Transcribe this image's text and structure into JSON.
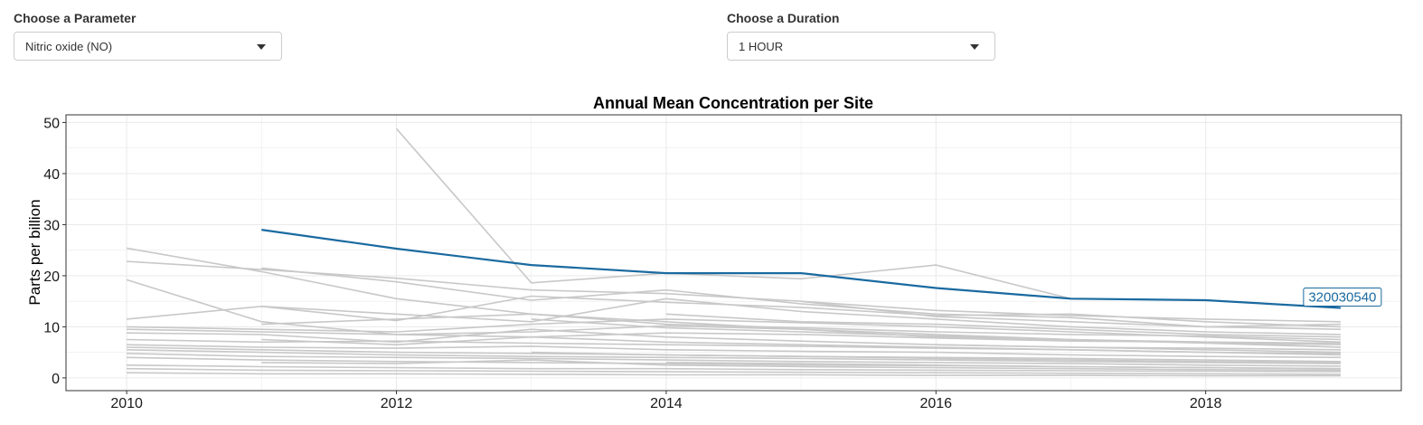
{
  "controls": {
    "parameter": {
      "label": "Choose a Parameter",
      "value": "Nitric oxide (NO)"
    },
    "duration": {
      "label": "Choose a Duration",
      "value": "1 HOUR"
    }
  },
  "icons": {
    "dropdown": "caret-down-icon"
  },
  "colors": {
    "highlight": "#1a6aa0",
    "background_lines": "#c8c8c8",
    "grid": "#ebebeb"
  },
  "chart_data": {
    "type": "line",
    "title": "Annual Mean Concentration per Site",
    "xlabel": "",
    "ylabel": "Parts per billion",
    "xlim": [
      2009.55,
      2019.45
    ],
    "ylim": [
      -2.5,
      51.5
    ],
    "xticks": [
      2010,
      2012,
      2014,
      2016,
      2018
    ],
    "yticks": [
      0,
      10,
      20,
      30,
      40,
      50
    ],
    "grid": true,
    "highlight": {
      "name": "320030540",
      "x": [
        2011,
        2012,
        2013,
        2014,
        2015,
        2016,
        2017,
        2018,
        2019
      ],
      "y": [
        29,
        25.3,
        22.1,
        20.5,
        20.5,
        17.6,
        15.5,
        15.2,
        13.7
      ]
    },
    "series": [
      {
        "x": [
          2012,
          2013,
          2014,
          2015,
          2016,
          2017
        ],
        "y": [
          48.8,
          18.6,
          20.5,
          19.4,
          22.1,
          15.5
        ]
      },
      {
        "x": [
          2010,
          2011,
          2012,
          2013,
          2014,
          2015,
          2016,
          2017,
          2018,
          2019
        ],
        "y": [
          25.4,
          20.8,
          15.5,
          12.5,
          10.5,
          9.8,
          9.0,
          8.5,
          8.2,
          7.5
        ]
      },
      {
        "x": [
          2010,
          2011,
          2012,
          2013,
          2014,
          2015,
          2016,
          2017,
          2018,
          2019
        ],
        "y": [
          22.8,
          21.2,
          19.5,
          17.2,
          16.5,
          15.0,
          13.2,
          12.2,
          11.5,
          11.0
        ]
      },
      {
        "x": [
          2010,
          2011,
          2012,
          2013,
          2014,
          2015,
          2016,
          2017,
          2018,
          2019
        ],
        "y": [
          19.2,
          11.0,
          8.5,
          9.0,
          10.2,
          9.5,
          8.0,
          7.4,
          7.0,
          6.8
        ]
      },
      {
        "x": [
          2010,
          2011,
          2012,
          2013,
          2014,
          2015,
          2016,
          2017,
          2018,
          2019
        ],
        "y": [
          11.5,
          14.0,
          11.2,
          16.0,
          14.8,
          13.8,
          12.2,
          12.5,
          11.0,
          10.0
        ]
      },
      {
        "x": [
          2011,
          2012,
          2013,
          2014,
          2015,
          2016,
          2017,
          2018,
          2019
        ],
        "y": [
          21.5,
          18.8,
          15.2,
          17.2,
          14.5,
          12.5,
          11.8,
          10.0,
          10.5
        ]
      },
      {
        "x": [
          2010,
          2011,
          2012,
          2013,
          2014,
          2015,
          2016,
          2017,
          2018,
          2019
        ],
        "y": [
          10.0,
          9.5,
          9.0,
          10.5,
          11.5,
          10.8,
          10.0,
          9.0,
          8.0,
          7.0
        ]
      },
      {
        "x": [
          2010,
          2011,
          2012,
          2013,
          2014,
          2015,
          2016,
          2017,
          2018,
          2019
        ],
        "y": [
          9.5,
          9.0,
          8.5,
          8.0,
          8.8,
          8.5,
          7.8,
          7.2,
          7.0,
          6.5
        ]
      },
      {
        "x": [
          2010,
          2011,
          2012,
          2013,
          2014,
          2015,
          2016,
          2017,
          2018,
          2019
        ],
        "y": [
          8.8,
          8.5,
          7.0,
          9.5,
          8.0,
          7.2,
          6.5,
          6.0,
          5.8,
          5.5
        ]
      },
      {
        "x": [
          2010,
          2011,
          2012,
          2013,
          2014,
          2015,
          2016,
          2017,
          2018,
          2019
        ],
        "y": [
          7.5,
          7.0,
          7.2,
          6.8,
          6.5,
          6.2,
          5.8,
          5.5,
          5.0,
          4.8
        ]
      },
      {
        "x": [
          2010,
          2011,
          2012,
          2013,
          2014,
          2015,
          2016,
          2017,
          2018,
          2019
        ],
        "y": [
          6.5,
          6.0,
          5.8,
          6.2,
          5.5,
          5.2,
          5.0,
          4.5,
          4.2,
          4.0
        ]
      },
      {
        "x": [
          2010,
          2011,
          2012,
          2013,
          2014,
          2015,
          2016,
          2017,
          2018,
          2019
        ],
        "y": [
          6.0,
          5.5,
          5.0,
          4.8,
          4.5,
          4.2,
          4.0,
          3.8,
          3.5,
          3.2
        ]
      },
      {
        "x": [
          2010,
          2011,
          2012,
          2013,
          2014,
          2015,
          2016,
          2017,
          2018,
          2019
        ],
        "y": [
          5.5,
          5.0,
          4.5,
          4.2,
          4.0,
          3.8,
          3.5,
          3.2,
          3.0,
          2.8
        ]
      },
      {
        "x": [
          2010,
          2011,
          2012,
          2013,
          2014,
          2015,
          2016,
          2017,
          2018,
          2019
        ],
        "y": [
          4.8,
          4.2,
          4.0,
          3.8,
          3.5,
          3.2,
          3.0,
          2.8,
          2.5,
          2.3
        ]
      },
      {
        "x": [
          2010,
          2011,
          2012,
          2013,
          2014,
          2015,
          2016,
          2017,
          2018,
          2019
        ],
        "y": [
          4.0,
          3.5,
          3.2,
          3.0,
          2.8,
          2.5,
          2.4,
          2.2,
          2.0,
          1.8
        ]
      },
      {
        "x": [
          2010,
          2011,
          2012,
          2013,
          2014,
          2015,
          2016,
          2017,
          2018,
          2019
        ],
        "y": [
          2.5,
          2.2,
          2.0,
          1.8,
          1.8,
          1.6,
          1.5,
          1.4,
          1.3,
          1.2
        ]
      },
      {
        "x": [
          2010,
          2011,
          2012,
          2013,
          2014,
          2015,
          2016,
          2017,
          2018,
          2019
        ],
        "y": [
          1.8,
          1.5,
          1.4,
          1.3,
          1.2,
          1.1,
          1.0,
          0.9,
          0.8,
          0.7
        ]
      },
      {
        "x": [
          2010,
          2011,
          2012,
          2013,
          2014,
          2015,
          2016,
          2017,
          2018,
          2019
        ],
        "y": [
          1.0,
          0.8,
          0.8,
          0.7,
          0.6,
          0.6,
          0.5,
          0.5,
          0.4,
          0.4
        ]
      },
      {
        "x": [
          2011,
          2012,
          2013,
          2014,
          2015,
          2016,
          2017,
          2018,
          2019
        ],
        "y": [
          14.0,
          12.5,
          11.0,
          15.5,
          13.0,
          11.5,
          10.0,
          9.0,
          8.5
        ]
      },
      {
        "x": [
          2011,
          2012,
          2013,
          2014,
          2015,
          2016,
          2017,
          2018,
          2019
        ],
        "y": [
          10.5,
          11.5,
          12.5,
          11.0,
          9.5,
          8.5,
          7.5,
          7.0,
          6.0
        ]
      },
      {
        "x": [
          2011,
          2012,
          2013,
          2014,
          2015,
          2016,
          2017,
          2018,
          2019
        ],
        "y": [
          7.5,
          6.5,
          8.0,
          7.0,
          6.5,
          6.0,
          5.5,
          5.0,
          4.5
        ]
      },
      {
        "x": [
          2011,
          2012,
          2013,
          2014,
          2015,
          2016,
          2017,
          2018,
          2019
        ],
        "y": [
          3.0,
          2.8,
          3.5,
          2.5,
          2.2,
          2.0,
          1.8,
          1.6,
          1.5
        ]
      },
      {
        "x": [
          2013,
          2014,
          2015,
          2016,
          2017,
          2018,
          2019
        ],
        "y": [
          11.5,
          9.8,
          9.0,
          8.2,
          7.5,
          6.8,
          6.0
        ]
      },
      {
        "x": [
          2013,
          2014,
          2015,
          2016,
          2017,
          2018,
          2019
        ],
        "y": [
          5.0,
          4.5,
          4.2,
          3.8,
          3.5,
          3.2,
          3.0
        ]
      },
      {
        "x": [
          2014,
          2015,
          2016,
          2017,
          2018,
          2019
        ],
        "y": [
          12.5,
          11.0,
          10.5,
          9.5,
          8.5,
          8.0
        ]
      },
      {
        "x": [
          2014,
          2015,
          2016,
          2017,
          2018,
          2019
        ],
        "y": [
          3.0,
          2.8,
          2.5,
          2.2,
          2.0,
          1.8
        ]
      },
      {
        "x": [
          2015,
          2016,
          2017,
          2018,
          2019
        ],
        "y": [
          15.0,
          12.0,
          11.0,
          10.0,
          9.5
        ]
      },
      {
        "x": [
          2016,
          2017,
          2018,
          2019
        ],
        "y": [
          6.5,
          6.0,
          5.5,
          5.0
        ]
      }
    ]
  }
}
